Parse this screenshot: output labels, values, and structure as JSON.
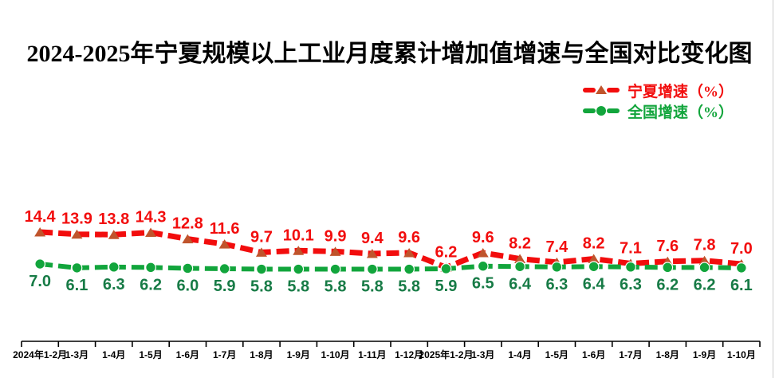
{
  "title": "2024-2025年宁夏规模以上工业月度累计增加值增速与全国对比变化图",
  "legend": [
    {
      "label": "宁夏增速（%）",
      "line_color": "#f20d0d",
      "marker_color": "#c0542c",
      "label_color": "#f20d0d"
    },
    {
      "label": "全国增速（%）",
      "line_color": "#12a53c",
      "marker_color": "#12a53c",
      "label_color": "#12a53c"
    }
  ],
  "chart_data": {
    "type": "line",
    "title": "2024-2025年宁夏规模以上工业月度累计增加值增速与全国对比变化图",
    "categories": [
      "2024年1-2月",
      "1-3月",
      "1-4月",
      "1-5月",
      "1-6月",
      "1-7月",
      "1-8月",
      "1-9月",
      "1-10月",
      "1-11月",
      "1-12月",
      "2025年1-2月",
      "1-3月",
      "1-4月",
      "1-5月",
      "1-6月",
      "1-7月",
      "1-8月",
      "1-9月",
      "1-10月"
    ],
    "series": [
      {
        "name": "宁夏增速（%）",
        "values": [
          14.4,
          13.9,
          13.8,
          14.3,
          12.8,
          11.6,
          9.7,
          10.1,
          9.9,
          9.4,
          9.6,
          6.2,
          9.6,
          8.2,
          7.4,
          8.2,
          7.1,
          7.6,
          7.8,
          7.0
        ],
        "color": "#f20d0d",
        "marker": "triangle",
        "marker_color": "#c0542c",
        "label_color": "#f20d0d",
        "label_position": "above"
      },
      {
        "name": "全国增速（%）",
        "values": [
          7.0,
          6.1,
          6.3,
          6.2,
          6.0,
          5.9,
          5.8,
          5.8,
          5.8,
          5.8,
          5.8,
          5.9,
          6.5,
          6.4,
          6.3,
          6.4,
          6.3,
          6.2,
          6.2,
          6.1
        ],
        "color": "#12a53c",
        "marker": "circle",
        "marker_color": "#12a53c",
        "label_color": "#177b46",
        "label_position": "below"
      }
    ],
    "ylim": [
      4.5,
      16
    ],
    "grid": false,
    "line_style": "dashed",
    "data_labels": true,
    "legend_position": "top-right",
    "axis_color": "#000000",
    "tick_label_color": "#000000"
  }
}
